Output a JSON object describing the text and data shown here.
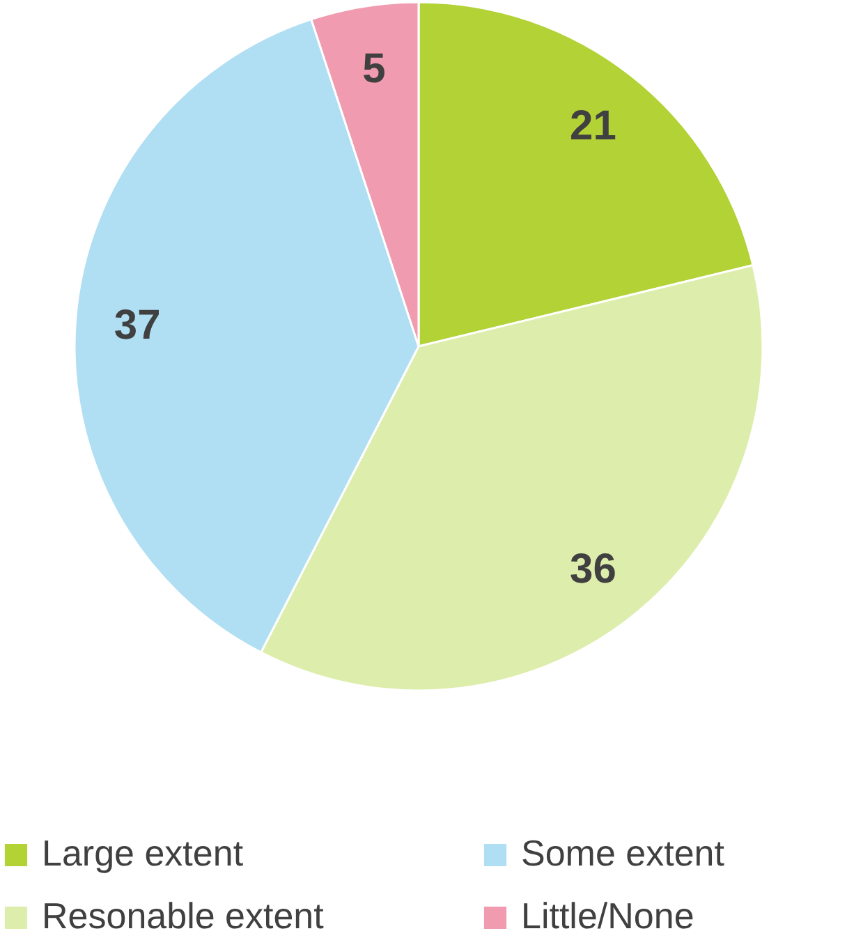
{
  "chart_data": {
    "type": "pie",
    "categories": [
      "Large extent",
      "Resonable extent",
      "Some extent",
      "Little/None"
    ],
    "values": [
      21,
      36,
      37,
      5
    ],
    "colors": [
      "#b2d235",
      "#ddedab",
      "#b0def3",
      "#f09bb0"
    ],
    "data_labels": true,
    "legend": "bottom"
  }
}
